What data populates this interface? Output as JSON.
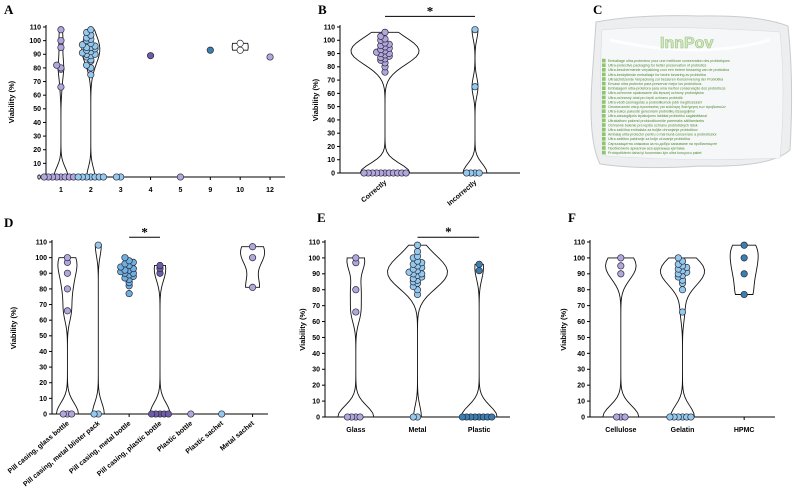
{
  "colors": {
    "purple_light": "#b3a6dd",
    "purple_dark": "#6f5aa8",
    "blue_light": "#94c9ee",
    "blue_dark": "#3a7fb0",
    "violin_stroke": "#111111",
    "bag_green": "#6aa84f"
  },
  "panel_c": {
    "label": "C",
    "brand": "InnPov",
    "icon": "packaging-photo-icon",
    "lines": [
      "Emballage ultra-protecteur pour une meilleure conservation des probiotiques",
      "Ultra-protective packaging for better preservation of probiotics",
      "Ultra-beschermende verpakking voor een betere bewaring van de probiotica",
      "Ultra-beskyttende emballasje for bedre bevaring av probiotika",
      "Ultraschützende Verpackung zur besseren Konservierung der Probiotika",
      "Envase ultra protector para preservar mejor los probióticos",
      "Embalagem ultra-protetora para uma melhor conservação dos probióticos",
      "Ultra-ochronne opakowanie dla lepszej ochrony probiotyków",
      "Ultra-ochranný obal pro lepší ochranu probiotik",
      "Ultra-védő csomagolás a probiotikumok jobb megőrzéséért",
      "Οσυσκευασία υπερ-προστασίας για καλύτερη διατήρηση των προβιοτικών",
      "Ultra-sukcu pakuotė geresniam probiotikų išsaugojimui",
      "Ultra-aizsargājošs iepakojums labākai probiotiku saglabāšanai",
      "Ultrakaitsev pakend probiootikumide paremaks säilitamiseks",
      "Ochranné balenie pre lepšiu ochranu probiotických látok",
      "Ultra zaščitna embalaža za boljše ohranjanje probiotikov",
      "Ambalaj ultra-protector pentru o mai bună conservare a probioticelor",
      "Ultra zaštitno pakiranje za bolje očuvanje probiotika",
      "Свръхзащитна опаковка за по-добро запазване на пробиотиците",
      "Пробиотикте арналған аса қорғаныш қаптама",
      "Probiyotiklerin daha iyi korunması için ultra koruyucu paket"
    ]
  },
  "chart_data": [
    {
      "id": "A",
      "type": "violin",
      "label": "A",
      "ylabel": "Viability (%)",
      "ylim": [
        0,
        110
      ],
      "yticks": [
        0,
        10,
        20,
        30,
        40,
        50,
        60,
        70,
        80,
        90,
        100,
        110
      ],
      "significance": [],
      "groups": [
        {
          "name": "1",
          "color": "#b3a6dd",
          "fill": "#ffffff",
          "violin": true,
          "violinWidth": 7,
          "points": [
            0,
            0,
            0,
            0,
            0,
            0,
            0,
            0,
            66,
            79,
            80,
            82,
            95,
            100,
            108
          ]
        },
        {
          "name": "2",
          "color": "#94c9ee",
          "fill": "#ffffff",
          "violin": true,
          "violinWidth": 9,
          "points": [
            0,
            0,
            0,
            0,
            0,
            0,
            0,
            75,
            80,
            82,
            85,
            86,
            88,
            89,
            90,
            90,
            91,
            92,
            93,
            94,
            95,
            95,
            96,
            97,
            98,
            100,
            101,
            102,
            104,
            106,
            108
          ]
        },
        {
          "name": "3",
          "color": "#94c9ee",
          "fill": "#ffffff",
          "violin": false,
          "violinWidth": 0,
          "points": [
            0,
            0
          ]
        },
        {
          "name": "4",
          "color": "#6f5aa8",
          "fill": "#ffffff",
          "violin": false,
          "violinWidth": 0,
          "points": [
            89
          ]
        },
        {
          "name": "5",
          "color": "#b3a6dd",
          "fill": "#ffffff",
          "violin": false,
          "violinWidth": 0,
          "points": [
            0
          ]
        },
        {
          "name": "9",
          "color": "#3a7fb0",
          "fill": "#ffffff",
          "violin": false,
          "violinWidth": 0,
          "points": [
            93
          ]
        },
        {
          "name": "10",
          "color": "#ffffff",
          "fill": "#ffffff",
          "violin": true,
          "violinWidth": 8,
          "points": [
            93,
            98
          ]
        },
        {
          "name": "12",
          "color": "#b3a6dd",
          "fill": "#ffffff",
          "violin": false,
          "violinWidth": 0,
          "points": [
            88
          ]
        }
      ]
    },
    {
      "id": "B",
      "type": "violin",
      "label": "B",
      "ylabel": "Viability (%)",
      "ylim": [
        0,
        110
      ],
      "yticks": [
        0,
        10,
        20,
        30,
        40,
        50,
        60,
        70,
        80,
        90,
        100,
        110
      ],
      "significance": [
        {
          "from": 0,
          "to": 1,
          "text": "*",
          "y": 118
        }
      ],
      "groups": [
        {
          "name": "Correctly",
          "color": "#b3a6dd",
          "fill": "#ffffff",
          "violin": true,
          "violinWidth": 34,
          "points": [
            0,
            0,
            0,
            0,
            0,
            0,
            0,
            0,
            0,
            0,
            0,
            76,
            80,
            83,
            85,
            86,
            87,
            88,
            89,
            90,
            90,
            91,
            92,
            93,
            94,
            95,
            96,
            97,
            98,
            100,
            101,
            103,
            106
          ]
        },
        {
          "name": "Incorrectly",
          "color": "#94c9ee",
          "fill": "#ffffff",
          "violin": true,
          "violinWidth": 12,
          "points": [
            0,
            0,
            0,
            0,
            65,
            108
          ]
        }
      ]
    },
    {
      "id": "D",
      "type": "violin",
      "label": "D",
      "ylabel": "Viability (%)",
      "ylim": [
        0,
        110
      ],
      "yticks": [
        0,
        10,
        20,
        30,
        40,
        50,
        60,
        70,
        80,
        90,
        100,
        110
      ],
      "significance": [
        {
          "from": 2,
          "to": 3,
          "text": "*",
          "y": 113
        }
      ],
      "groups": [
        {
          "name": "Pill casing, glass bottle",
          "color": "#b3a6dd",
          "fill": "#ffffff",
          "violin": true,
          "violinWidth": 11,
          "points": [
            0,
            0,
            0,
            66,
            80,
            90,
            97,
            100
          ]
        },
        {
          "name": "Pill casing, metal blister pack",
          "color": "#94c9ee",
          "fill": "#ffffff",
          "violin": true,
          "violinWidth": 6,
          "points": [
            0,
            0,
            108
          ]
        },
        {
          "name": "Pill casing, metal bottle",
          "color": "#3a7fb0",
          "fill": "#6fb0e0",
          "violin": false,
          "violinWidth": 0,
          "points": [
            77,
            82,
            84,
            86,
            87,
            88,
            89,
            90,
            90,
            91,
            92,
            92,
            93,
            94,
            95,
            96,
            97,
            98,
            100
          ]
        },
        {
          "name": "Pill casing, plastic bottle",
          "color": "#6f5aa8",
          "fill": "#ffffff",
          "violin": true,
          "violinWidth": 10,
          "points": [
            0,
            0,
            0,
            0,
            0,
            90,
            93,
            95
          ]
        },
        {
          "name": "Plastic bottle",
          "color": "#b3a6dd",
          "fill": "#ffffff",
          "violin": false,
          "violinWidth": 0,
          "points": [
            0
          ]
        },
        {
          "name": "Plastic sachet",
          "color": "#94c9ee",
          "fill": "#ffffff",
          "violin": false,
          "violinWidth": 0,
          "points": [
            0
          ]
        },
        {
          "name": "Metal sachet",
          "color": "#b3a6dd",
          "fill": "#ffffff",
          "violin": true,
          "violinWidth": 12,
          "points": [
            81,
            100,
            107
          ]
        }
      ]
    },
    {
      "id": "E",
      "type": "violin",
      "label": "E",
      "ylabel": "Viability (%)",
      "ylim": [
        0,
        110
      ],
      "yticks": [
        0,
        10,
        20,
        30,
        40,
        50,
        60,
        70,
        80,
        90,
        100,
        110
      ],
      "significance": [
        {
          "from": 1,
          "to": 2,
          "text": "*",
          "y": 113
        }
      ],
      "groups": [
        {
          "name": "Glass",
          "color": "#b3a6dd",
          "fill": "#ffffff",
          "violin": true,
          "violinWidth": 18,
          "points": [
            0,
            0,
            0,
            0,
            66,
            80,
            97,
            100
          ]
        },
        {
          "name": "Metal",
          "color": "#94c9ee",
          "fill": "#ffffff",
          "violin": true,
          "violinWidth": 30,
          "points": [
            0,
            0,
            77,
            80,
            82,
            84,
            85,
            86,
            87,
            88,
            89,
            90,
            90,
            91,
            92,
            93,
            94,
            95,
            96,
            97,
            98,
            100,
            101,
            104,
            108
          ]
        },
        {
          "name": "Plastic",
          "color": "#3a7fb0",
          "fill": "#ffffff",
          "violin": true,
          "violinWidth": 18,
          "points": [
            0,
            0,
            0,
            0,
            0,
            0,
            0,
            0,
            92,
            96
          ]
        }
      ]
    },
    {
      "id": "F",
      "type": "violin",
      "label": "F",
      "ylabel": "Viability (%)",
      "ylim": [
        0,
        110
      ],
      "yticks": [
        0,
        10,
        20,
        30,
        40,
        50,
        60,
        70,
        80,
        90,
        100,
        110
      ],
      "significance": [],
      "groups": [
        {
          "name": "Cellulose",
          "color": "#b3a6dd",
          "fill": "#ffffff",
          "violin": true,
          "violinWidth": 18,
          "points": [
            0,
            0,
            0,
            90,
            95,
            100
          ]
        },
        {
          "name": "Gelatin",
          "color": "#94c9ee",
          "fill": "#ffffff",
          "violin": true,
          "violinWidth": 22,
          "points": [
            0,
            0,
            0,
            0,
            0,
            0,
            66,
            80,
            84,
            86,
            88,
            89,
            90,
            91,
            92,
            93,
            94,
            95,
            96,
            98,
            100
          ]
        },
        {
          "name": "HPMC",
          "color": "#3a7fb0",
          "fill": "#ffffff",
          "violin": true,
          "violinWidth": 14,
          "points": [
            77,
            90,
            100,
            108
          ]
        }
      ]
    }
  ]
}
